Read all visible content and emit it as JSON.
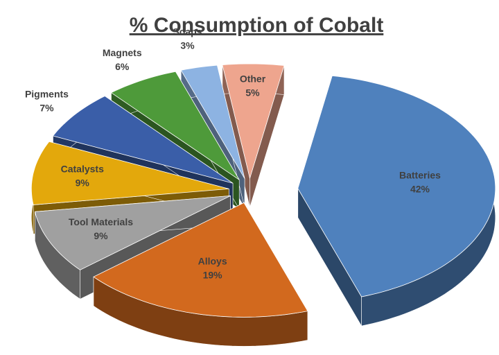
{
  "chart_data": {
    "type": "pie",
    "title": "% Consumption of Cobalt",
    "categories": [
      "Batteries",
      "Alloys",
      "Tool Materials",
      "Catalysts",
      "Pigments",
      "Magnets",
      "Soaps",
      "Other"
    ],
    "values": [
      42,
      19,
      9,
      9,
      7,
      6,
      3,
      5
    ],
    "value_labels": [
      "42%",
      "19%",
      "9%",
      "9%",
      "7%",
      "6%",
      "3%",
      "5%"
    ],
    "colors": [
      "#4f81bd",
      "#d2691e",
      "#a0a0a0",
      "#e3a80c",
      "#3a5ea8",
      "#4e9a3a",
      "#8db3e2",
      "#eea58e"
    ]
  }
}
